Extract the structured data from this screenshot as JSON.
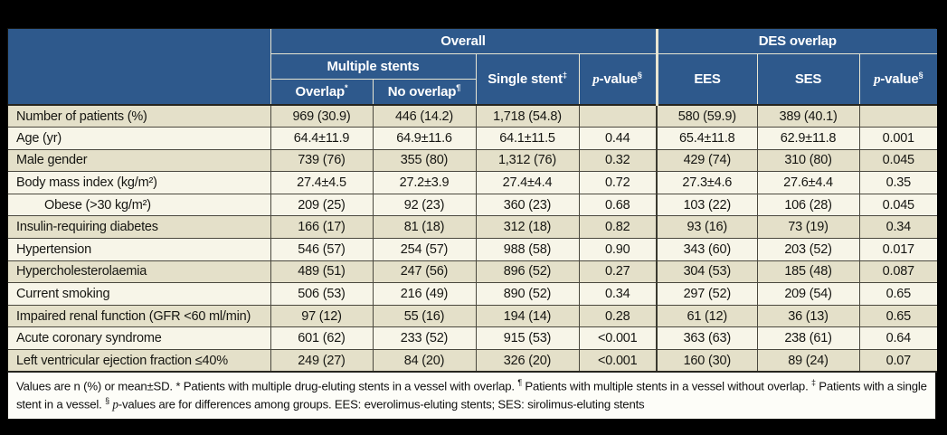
{
  "colors": {
    "page_bg": "#000000",
    "header_bg": "#2e598c",
    "header_line": "#e9e6d2",
    "row_beige": "#e4e0c9",
    "row_cream": "#f7f5e8",
    "footnote_bg": "#fdfdf8",
    "header_text": "#ffffff",
    "body_text": "#161612"
  },
  "table": {
    "header": {
      "overall": "Overall",
      "des_overlap": "DES overlap",
      "multiple_stents": "Multiple stents",
      "overlap": {
        "text": "Overlap",
        "sup": "*"
      },
      "no_overlap": {
        "text": "No overlap",
        "sup": "¶"
      },
      "single_stent": {
        "text": "Single stent",
        "sup": "‡"
      },
      "p_value_overall": {
        "italic": "p",
        "text": "-value",
        "sup": "§"
      },
      "ees": "EES",
      "ses": "SES",
      "p_value_des": {
        "italic": "p",
        "text": "-value",
        "sup": "§"
      }
    },
    "rows": [
      {
        "label": "Number of patients (%)",
        "indent": false,
        "shade": "beige",
        "values": [
          "969 (30.9)",
          "446 (14.2)",
          "1,718 (54.8)",
          "",
          "580 (59.9)",
          "389 (40.1)",
          ""
        ]
      },
      {
        "label": "Age (yr)",
        "indent": false,
        "shade": "cream",
        "values": [
          "64.4±11.9",
          "64.9±11.6",
          "64.1±11.5",
          "0.44",
          "65.4±11.8",
          "62.9±11.8",
          "0.001"
        ]
      },
      {
        "label": "Male gender",
        "indent": false,
        "shade": "beige",
        "values": [
          "739 (76)",
          "355 (80)",
          "1,312 (76)",
          "0.32",
          "429 (74)",
          "310 (80)",
          "0.045"
        ]
      },
      {
        "label": "Body mass index (kg/m²)",
        "indent": false,
        "shade": "cream",
        "values": [
          "27.4±4.5",
          "27.2±3.9",
          "27.4±4.4",
          "0.72",
          "27.3±4.6",
          "27.6±4.4",
          "0.35"
        ]
      },
      {
        "label": "Obese (>30 kg/m²)",
        "indent": true,
        "shade": "cream",
        "values": [
          "209 (25)",
          "92 (23)",
          "360 (23)",
          "0.68",
          "103 (22)",
          "106 (28)",
          "0.045"
        ]
      },
      {
        "label": "Insulin-requiring diabetes",
        "indent": false,
        "shade": "beige",
        "values": [
          "166 (17)",
          "81 (18)",
          "312 (18)",
          "0.82",
          "93 (16)",
          "73 (19)",
          "0.34"
        ]
      },
      {
        "label": "Hypertension",
        "indent": false,
        "shade": "cream",
        "values": [
          "546 (57)",
          "254 (57)",
          "988 (58)",
          "0.90",
          "343 (60)",
          "203 (52)",
          "0.017"
        ]
      },
      {
        "label": "Hypercholesterolaemia",
        "indent": false,
        "shade": "beige",
        "values": [
          "489 (51)",
          "247 (56)",
          "896 (52)",
          "0.27",
          "304 (53)",
          "185 (48)",
          "0.087"
        ]
      },
      {
        "label": "Current smoking",
        "indent": false,
        "shade": "cream",
        "values": [
          "506 (53)",
          "216 (49)",
          "890 (52)",
          "0.34",
          "297 (52)",
          "209 (54)",
          "0.65"
        ]
      },
      {
        "label": "Impaired renal function (GFR <60 ml/min)",
        "indent": false,
        "shade": "beige",
        "values": [
          "97 (12)",
          "55 (16)",
          "194 (14)",
          "0.28",
          "61 (12)",
          "36 (13)",
          "0.65"
        ]
      },
      {
        "label": "Acute coronary syndrome",
        "indent": false,
        "shade": "cream",
        "values": [
          "601 (62)",
          "233 (52)",
          "915 (53)",
          "<0.001",
          "363 (63)",
          "238 (61)",
          "0.64"
        ]
      },
      {
        "label": "Left ventricular ejection fraction ≤40%",
        "indent": false,
        "shade": "beige",
        "values": [
          "249 (27)",
          "84 (20)",
          "326 (20)",
          "<0.001",
          "160 (30)",
          "89 (24)",
          "0.07"
        ]
      }
    ],
    "footnote_segments": [
      {
        "t": "Values are n (%) or mean±SD. * Patients with multiple drug-eluting stents in a vessel with overlap. "
      },
      {
        "sup": "¶"
      },
      {
        "t": " Patients with multiple stents in a vessel without overlap. "
      },
      {
        "sup": "‡"
      },
      {
        "t": " Patients with a single stent in a vessel. "
      },
      {
        "sup": "§"
      },
      {
        "t": " "
      },
      {
        "i": "p"
      },
      {
        "t": "-values are for differences among groups. EES: everolimus-eluting stents; SES: sirolimus-eluting stents"
      }
    ]
  }
}
